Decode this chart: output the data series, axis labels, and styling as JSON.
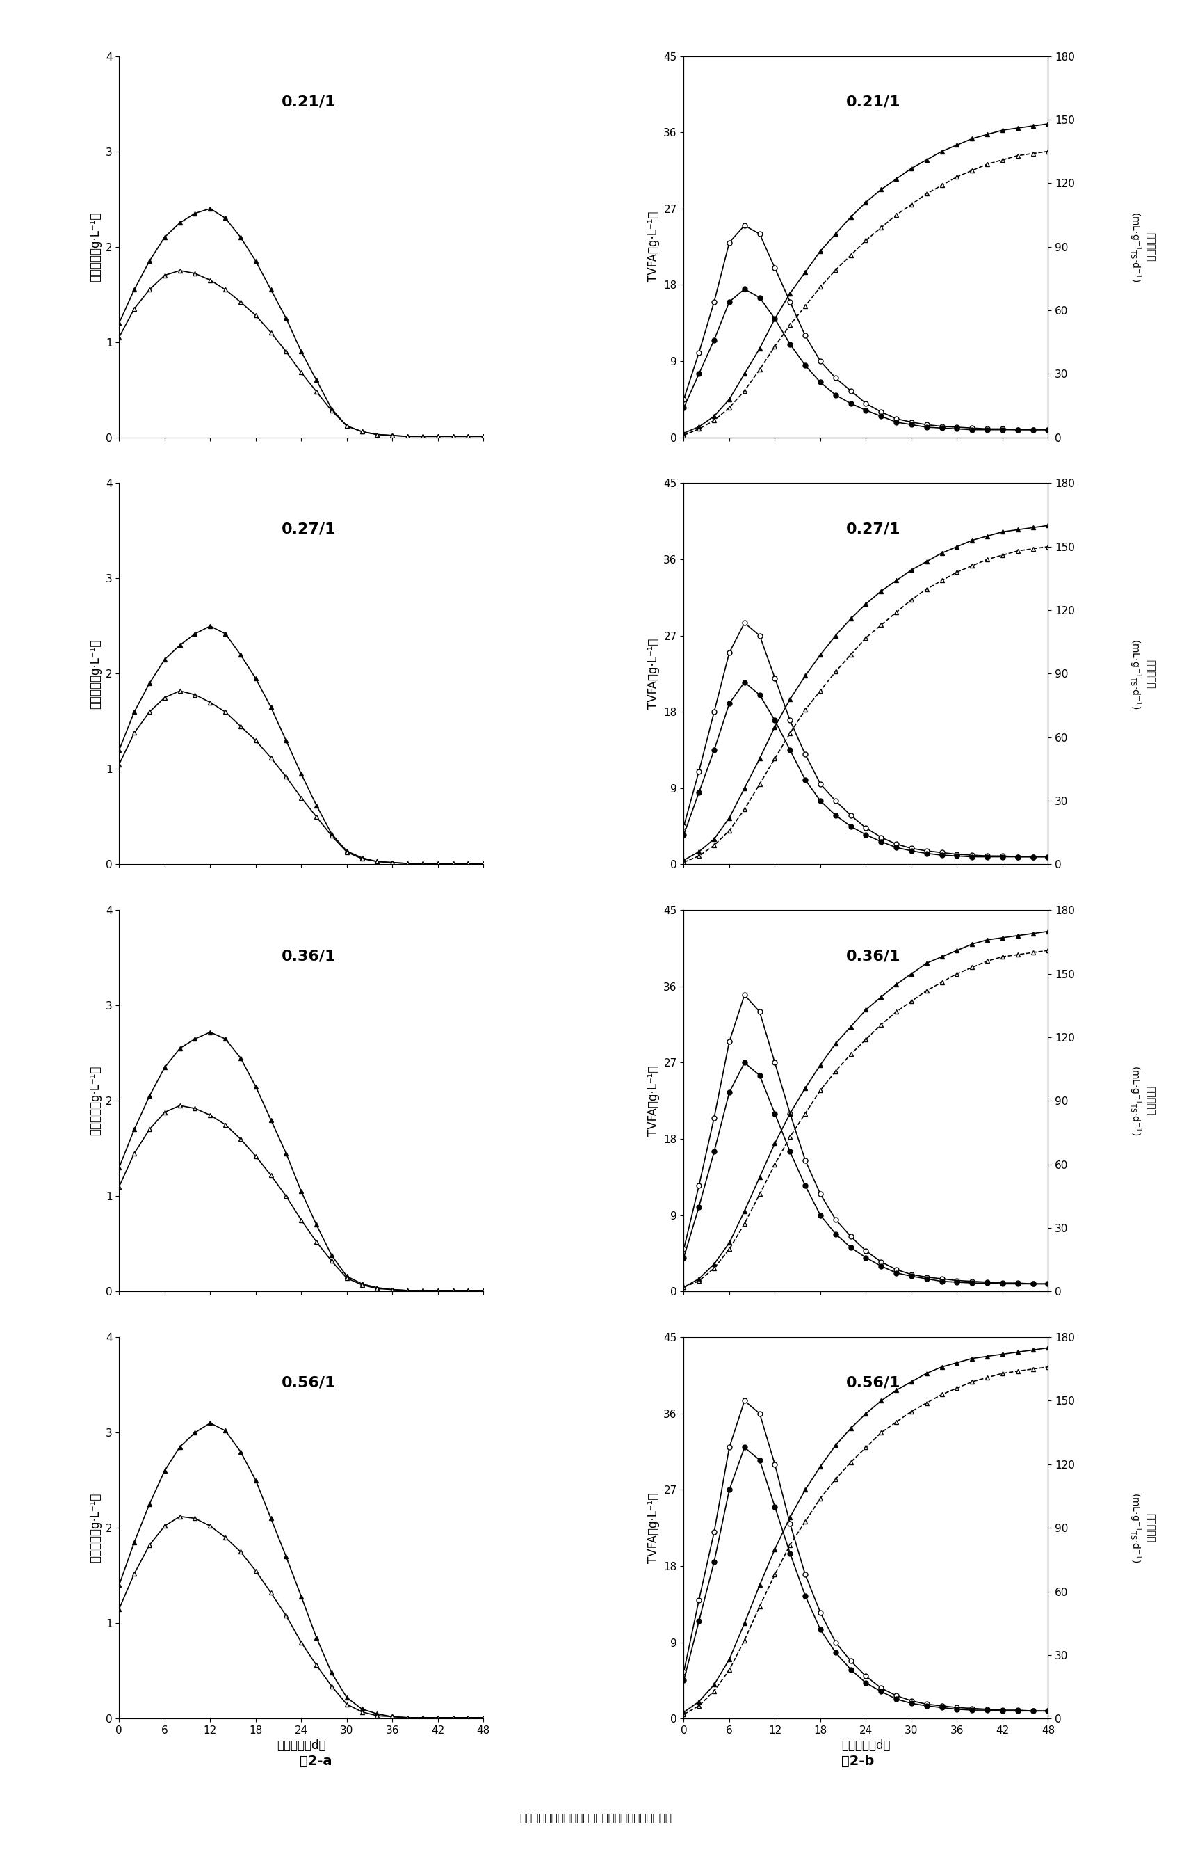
{
  "ratios": [
    "0.21/1",
    "0.27/1",
    "0.36/1",
    "0.56/1"
  ],
  "x_days": [
    0,
    2,
    4,
    6,
    8,
    10,
    12,
    14,
    16,
    18,
    20,
    22,
    24,
    26,
    28,
    30,
    32,
    34,
    36,
    38,
    40,
    42,
    44,
    46,
    48
  ],
  "left_ylabel": "乙醇浓度（g·L⁻¹）",
  "tvfa_ylabel": "TVFA（g·L⁻¹）",
  "methane_ylabel": "甲烷积产量（mL·g⁻¹ₜₛ·d⁻¹）",
  "xlabel": "发酵时间（d）",
  "x_ticks": [
    0,
    6,
    12,
    18,
    24,
    30,
    36,
    42,
    48
  ],
  "fig_a_label": "图2-a",
  "fig_b_label": "图2-b",
  "note": "注：实心表示实验组数据点；空心表示对照组数据点。",
  "ethanol_exp": {
    "0.21/1": [
      1.2,
      1.55,
      1.85,
      2.1,
      2.25,
      2.35,
      2.4,
      2.3,
      2.1,
      1.85,
      1.55,
      1.25,
      0.9,
      0.6,
      0.3,
      0.12,
      0.06,
      0.03,
      0.02,
      0.01,
      0.01,
      0.01,
      0.01,
      0.01,
      0.01
    ],
    "0.27/1": [
      1.2,
      1.6,
      1.9,
      2.15,
      2.3,
      2.42,
      2.5,
      2.42,
      2.2,
      1.95,
      1.65,
      1.3,
      0.95,
      0.62,
      0.32,
      0.14,
      0.07,
      0.03,
      0.02,
      0.01,
      0.01,
      0.01,
      0.01,
      0.01,
      0.01
    ],
    "0.36/1": [
      1.3,
      1.7,
      2.05,
      2.35,
      2.55,
      2.65,
      2.72,
      2.65,
      2.45,
      2.15,
      1.8,
      1.45,
      1.05,
      0.7,
      0.38,
      0.16,
      0.08,
      0.04,
      0.02,
      0.01,
      0.01,
      0.01,
      0.01,
      0.01,
      0.01
    ],
    "0.56/1": [
      1.4,
      1.85,
      2.25,
      2.6,
      2.85,
      3.0,
      3.1,
      3.02,
      2.8,
      2.5,
      2.1,
      1.7,
      1.28,
      0.85,
      0.48,
      0.22,
      0.1,
      0.05,
      0.02,
      0.01,
      0.01,
      0.01,
      0.01,
      0.01,
      0.01
    ]
  },
  "ethanol_ctrl": {
    "0.21/1": [
      1.05,
      1.35,
      1.55,
      1.7,
      1.75,
      1.72,
      1.65,
      1.55,
      1.42,
      1.28,
      1.1,
      0.9,
      0.68,
      0.48,
      0.28,
      0.12,
      0.06,
      0.03,
      0.02,
      0.01,
      0.01,
      0.01,
      0.01,
      0.01,
      0.01
    ],
    "0.27/1": [
      1.05,
      1.38,
      1.6,
      1.75,
      1.82,
      1.78,
      1.7,
      1.6,
      1.45,
      1.3,
      1.12,
      0.92,
      0.7,
      0.5,
      0.3,
      0.13,
      0.06,
      0.03,
      0.02,
      0.01,
      0.01,
      0.01,
      0.01,
      0.01,
      0.01
    ],
    "0.36/1": [
      1.1,
      1.45,
      1.7,
      1.88,
      1.95,
      1.92,
      1.85,
      1.75,
      1.6,
      1.42,
      1.22,
      1.0,
      0.75,
      0.52,
      0.32,
      0.14,
      0.07,
      0.03,
      0.02,
      0.01,
      0.01,
      0.01,
      0.01,
      0.01,
      0.01
    ],
    "0.56/1": [
      1.15,
      1.52,
      1.82,
      2.02,
      2.12,
      2.1,
      2.02,
      1.9,
      1.75,
      1.55,
      1.32,
      1.08,
      0.8,
      0.56,
      0.34,
      0.15,
      0.07,
      0.03,
      0.02,
      0.01,
      0.01,
      0.01,
      0.01,
      0.01,
      0.01
    ]
  },
  "tvfa_open": {
    "0.21/1": [
      4.5,
      10.0,
      16.0,
      23.0,
      25.0,
      24.0,
      20.0,
      16.0,
      12.0,
      9.0,
      7.0,
      5.5,
      4.0,
      3.0,
      2.2,
      1.8,
      1.5,
      1.3,
      1.2,
      1.1,
      1.0,
      1.0,
      0.9,
      0.9,
      0.9
    ],
    "0.27/1": [
      4.5,
      11.0,
      18.0,
      25.0,
      28.5,
      27.0,
      22.0,
      17.0,
      13.0,
      9.5,
      7.5,
      5.8,
      4.3,
      3.2,
      2.4,
      1.9,
      1.6,
      1.4,
      1.2,
      1.1,
      1.0,
      1.0,
      0.9,
      0.9,
      0.9
    ],
    "0.36/1": [
      5.0,
      12.5,
      20.5,
      29.5,
      35.0,
      33.0,
      27.0,
      21.0,
      15.5,
      11.5,
      8.5,
      6.5,
      4.8,
      3.5,
      2.6,
      2.0,
      1.7,
      1.5,
      1.3,
      1.2,
      1.1,
      1.0,
      1.0,
      0.9,
      0.9
    ],
    "0.56/1": [
      5.5,
      14.0,
      22.0,
      32.0,
      37.5,
      36.0,
      30.0,
      23.0,
      17.0,
      12.5,
      9.0,
      6.8,
      5.0,
      3.6,
      2.7,
      2.1,
      1.7,
      1.5,
      1.3,
      1.2,
      1.1,
      1.0,
      1.0,
      0.9,
      0.9
    ]
  },
  "tvfa_filled": {
    "0.21/1": [
      3.5,
      7.5,
      11.5,
      16.0,
      17.5,
      16.5,
      14.0,
      11.0,
      8.5,
      6.5,
      5.0,
      4.0,
      3.2,
      2.5,
      1.8,
      1.5,
      1.2,
      1.1,
      1.0,
      0.9,
      0.9,
      0.9,
      0.9,
      0.9,
      0.9
    ],
    "0.27/1": [
      3.5,
      8.5,
      13.5,
      19.0,
      21.5,
      20.0,
      17.0,
      13.5,
      10.0,
      7.5,
      5.8,
      4.5,
      3.5,
      2.7,
      2.0,
      1.6,
      1.3,
      1.1,
      1.0,
      0.9,
      0.9,
      0.9,
      0.9,
      0.9,
      0.9
    ],
    "0.36/1": [
      4.0,
      10.0,
      16.5,
      23.5,
      27.0,
      25.5,
      21.0,
      16.5,
      12.5,
      9.0,
      6.8,
      5.2,
      4.0,
      3.0,
      2.2,
      1.8,
      1.5,
      1.2,
      1.1,
      1.0,
      1.0,
      0.9,
      0.9,
      0.9,
      0.9
    ],
    "0.56/1": [
      4.5,
      11.5,
      18.5,
      27.0,
      32.0,
      30.5,
      25.0,
      19.5,
      14.5,
      10.5,
      7.8,
      5.8,
      4.2,
      3.2,
      2.3,
      1.8,
      1.5,
      1.3,
      1.1,
      1.0,
      1.0,
      0.9,
      0.9,
      0.9,
      0.9
    ]
  },
  "methane_exp": {
    "0.21/1": [
      2,
      5,
      10,
      18,
      30,
      42,
      56,
      68,
      78,
      88,
      96,
      104,
      111,
      117,
      122,
      127,
      131,
      135,
      138,
      141,
      143,
      145,
      146,
      147,
      148
    ],
    "0.27/1": [
      2,
      6,
      12,
      22,
      36,
      50,
      65,
      78,
      89,
      99,
      108,
      116,
      123,
      129,
      134,
      139,
      143,
      147,
      150,
      153,
      155,
      157,
      158,
      159,
      160
    ],
    "0.36/1": [
      2,
      6,
      13,
      23,
      38,
      54,
      70,
      84,
      96,
      107,
      117,
      125,
      133,
      139,
      145,
      150,
      155,
      158,
      161,
      164,
      166,
      167,
      168,
      169,
      170
    ],
    "0.56/1": [
      3,
      8,
      16,
      28,
      45,
      63,
      80,
      95,
      108,
      119,
      129,
      137,
      144,
      150,
      155,
      159,
      163,
      166,
      168,
      170,
      171,
      172,
      173,
      174,
      175
    ]
  },
  "methane_ctrl": {
    "0.21/1": [
      1,
      4,
      8,
      14,
      22,
      32,
      43,
      53,
      62,
      71,
      79,
      86,
      93,
      99,
      105,
      110,
      115,
      119,
      123,
      126,
      129,
      131,
      133,
      134,
      135
    ],
    "0.27/1": [
      1,
      4,
      9,
      16,
      26,
      38,
      50,
      62,
      73,
      82,
      91,
      99,
      107,
      113,
      119,
      125,
      130,
      134,
      138,
      141,
      144,
      146,
      148,
      149,
      150
    ],
    "0.36/1": [
      2,
      5,
      11,
      20,
      32,
      46,
      60,
      73,
      84,
      95,
      104,
      112,
      119,
      126,
      132,
      137,
      142,
      146,
      150,
      153,
      156,
      158,
      159,
      160,
      161
    ],
    "0.56/1": [
      2,
      6,
      13,
      23,
      37,
      53,
      68,
      82,
      93,
      104,
      113,
      121,
      128,
      135,
      140,
      145,
      149,
      153,
      156,
      159,
      161,
      163,
      164,
      165,
      166
    ]
  }
}
